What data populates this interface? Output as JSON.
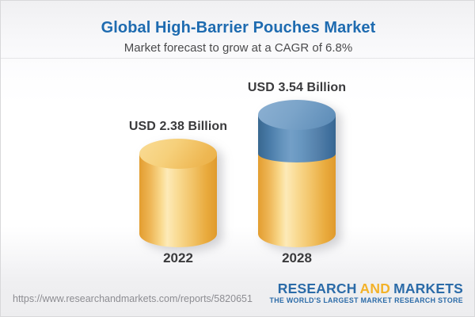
{
  "header": {
    "title": "Global High-Barrier Pouches Market",
    "subtitle": "Market forecast to grow at a CAGR of 6.8%"
  },
  "chart_data": {
    "type": "bar",
    "style": "3d-cylinder",
    "categories": [
      "2022",
      "2028"
    ],
    "values": [
      2.38,
      3.54
    ],
    "value_labels": [
      "USD 2.38 Billion",
      "USD 3.54 Billion"
    ],
    "unit": "USD Billion",
    "cagr_pct": 6.8,
    "baseline_value": 2.38,
    "legend": "none",
    "axes": "none",
    "colors": {
      "base_gold": "#f0b649",
      "growth_blue": "#5d8cb5",
      "label_text": "#3a3a3c",
      "title_blue": "#1e6bb0"
    }
  },
  "footer": {
    "url": "https://www.researchandmarkets.com/reports/5820651",
    "logo": {
      "part1": "RESEARCH",
      "part2": "AND",
      "part3": "MARKETS",
      "tagline": "THE WORLD'S LARGEST MARKET RESEARCH STORE"
    },
    "logo_colors": {
      "blue": "#2b6ba8",
      "gold": "#f3b229"
    }
  }
}
